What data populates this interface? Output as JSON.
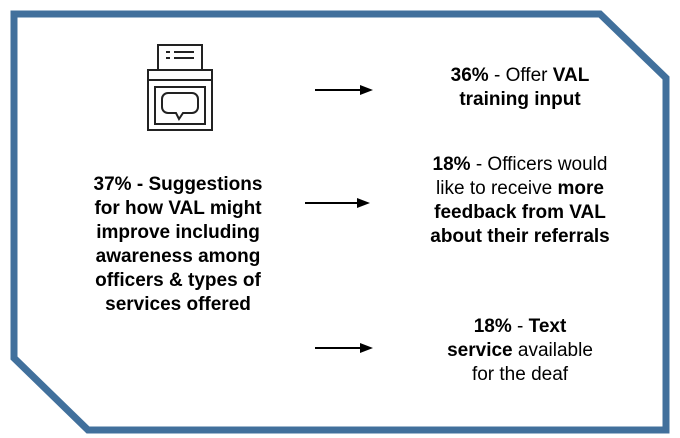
{
  "left": {
    "lines": [
      [
        {
          "text": "37% - Suggestions",
          "bold": true
        }
      ],
      [
        {
          "text": "for how VAL might",
          "bold": true
        }
      ],
      [
        {
          "text": "improve including",
          "bold": true
        }
      ],
      [
        {
          "text": "awareness among",
          "bold": true
        }
      ],
      [
        {
          "text": "officers & types of",
          "bold": true
        }
      ],
      [
        {
          "text": "services offered",
          "bold": true
        }
      ]
    ]
  },
  "items": [
    {
      "lines": [
        [
          {
            "text": "36%",
            "bold": true
          },
          {
            "text": " - Offer ",
            "bold": false
          },
          {
            "text": "VAL",
            "bold": true
          }
        ],
        [
          {
            "text": "training input",
            "bold": true
          }
        ]
      ]
    },
    {
      "lines": [
        [
          {
            "text": "18%",
            "bold": true
          },
          {
            "text": " - Officers would",
            "bold": false
          }
        ],
        [
          {
            "text": "like to receive ",
            "bold": false
          },
          {
            "text": "more",
            "bold": true
          }
        ],
        [
          {
            "text": "feedback from VAL",
            "bold": true
          }
        ],
        [
          {
            "text": "about their referrals",
            "bold": true
          }
        ]
      ]
    },
    {
      "lines": [
        [
          {
            "text": "18%",
            "bold": true
          },
          {
            "text": " - ",
            "bold": false
          },
          {
            "text": "Text",
            "bold": true
          }
        ],
        [
          {
            "text": "service",
            "bold": true
          },
          {
            "text": " available",
            "bold": false
          }
        ],
        [
          {
            "text": "for the deaf",
            "bold": false
          }
        ]
      ]
    }
  ]
}
